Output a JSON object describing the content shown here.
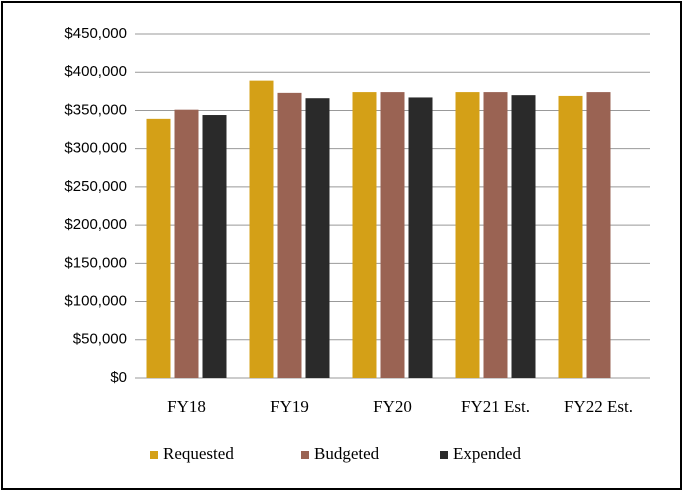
{
  "chart_data": {
    "type": "bar",
    "categories": [
      "FY18",
      "FY19",
      "FY20",
      "FY21 Est.",
      "FY22 Est."
    ],
    "series": [
      {
        "name": "Requested",
        "color": "#d4a017",
        "values": [
          339000,
          389000,
          374000,
          374000,
          369000
        ]
      },
      {
        "name": "Budgeted",
        "color": "#9a6353",
        "values": [
          351000,
          373000,
          374000,
          374000,
          374000
        ]
      },
      {
        "name": "Expended",
        "color": "#2a2a2a",
        "values": [
          344000,
          366000,
          367000,
          370000,
          null
        ]
      }
    ],
    "ylim": [
      0,
      450000
    ],
    "yticks": [
      {
        "value": 0,
        "label": "$0"
      },
      {
        "value": 50000,
        "label": "$50,000"
      },
      {
        "value": 100000,
        "label": "$100,000"
      },
      {
        "value": 150000,
        "label": "$150,000"
      },
      {
        "value": 200000,
        "label": "$200,000"
      },
      {
        "value": 250000,
        "label": "$250,000"
      },
      {
        "value": 300000,
        "label": "$300,000"
      },
      {
        "value": 350000,
        "label": "$350,000"
      },
      {
        "value": 400000,
        "label": "$400,000"
      },
      {
        "value": 450000,
        "label": "$450,000"
      }
    ],
    "grid": true,
    "legend": "bottom"
  }
}
